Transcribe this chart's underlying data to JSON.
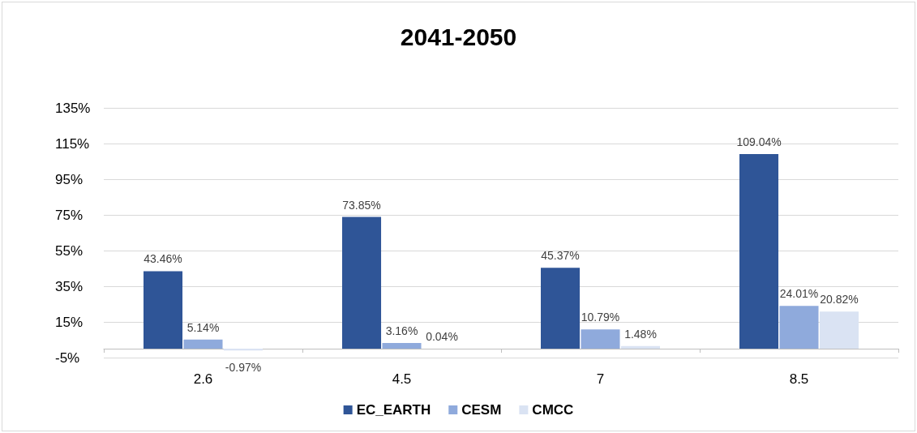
{
  "chart_data": {
    "type": "bar",
    "title": "2041-2050",
    "categories": [
      "2.6",
      "4.5",
      "7",
      "8.5"
    ],
    "series": [
      {
        "name": "EC_EARTH",
        "color": "#2f5597",
        "values": [
          43.46,
          73.85,
          45.37,
          109.04
        ],
        "value_labels": [
          "43.46%",
          "73.85%",
          "45.37%",
          "109.04%"
        ]
      },
      {
        "name": "CESM",
        "color": "#8faadc",
        "values": [
          5.14,
          3.16,
          10.79,
          24.01
        ],
        "value_labels": [
          "5.14%",
          "3.16%",
          "10.79%",
          "24.01%"
        ]
      },
      {
        "name": "CMCC",
        "color": "#dae3f3",
        "values": [
          -0.97,
          0.04,
          1.48,
          20.82
        ],
        "value_labels": [
          "-0.97%",
          "0.04%",
          "1.48%",
          "20.82%"
        ]
      }
    ],
    "ylim": [
      -5,
      135
    ],
    "yticks": [
      {
        "value": -5,
        "label": "-5%"
      },
      {
        "value": 15,
        "label": "15%"
      },
      {
        "value": 35,
        "label": "35%"
      },
      {
        "value": 55,
        "label": "55%"
      },
      {
        "value": 75,
        "label": "75%"
      },
      {
        "value": 95,
        "label": "95%"
      },
      {
        "value": 115,
        "label": "115%"
      },
      {
        "value": 135,
        "label": "135%"
      }
    ],
    "grid": "y",
    "legend": "bottom"
  }
}
